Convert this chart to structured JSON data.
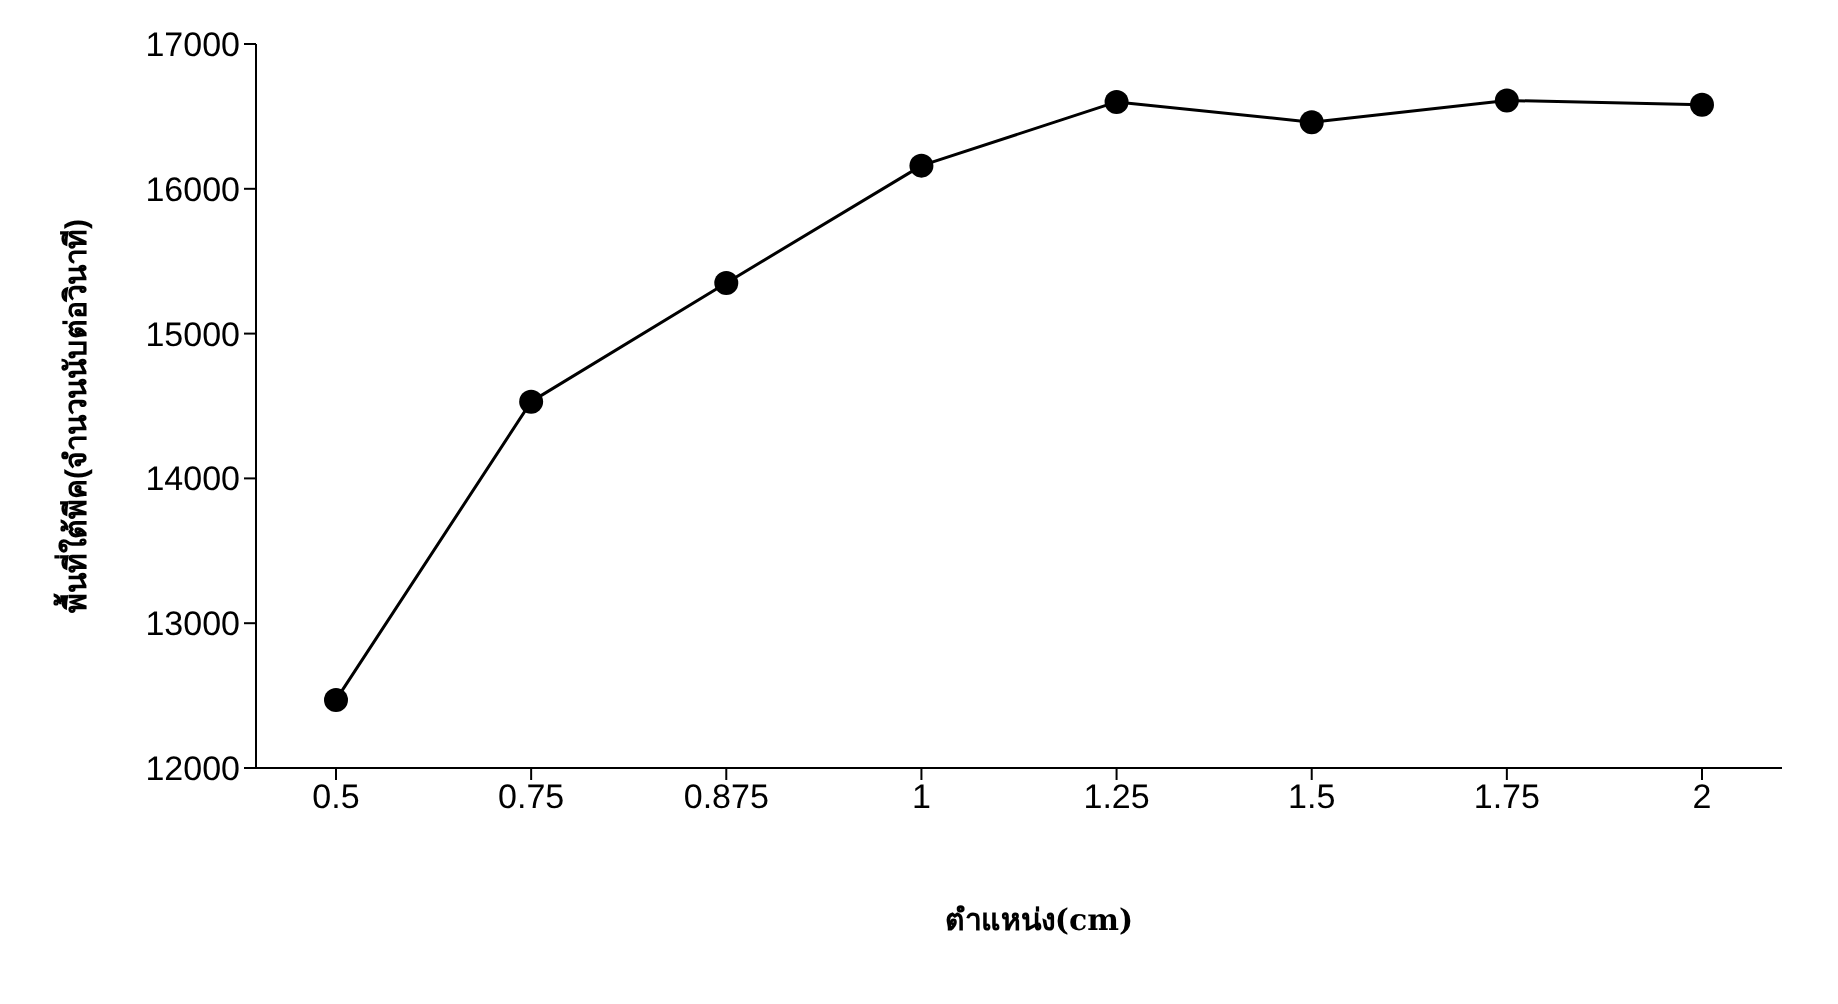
{
  "chart_data": {
    "type": "line",
    "xlabel": "ตำแหน่ง(cm)",
    "ylabel": "พื้นที่ใต้พีค(จำนวนนับต่อวินาที)",
    "categories": [
      "0.5",
      "0.75",
      "0.875",
      "1",
      "1.25",
      "1.5",
      "1.75",
      "2"
    ],
    "series": [
      {
        "color": "#000000",
        "values": [
          12470,
          14530,
          15350,
          16160,
          16600,
          16460,
          16610,
          16580
        ]
      }
    ],
    "ylim": [
      12000,
      17000
    ],
    "yticks": [
      12000,
      13000,
      14000,
      15000,
      16000,
      17000
    ],
    "marker": "circle",
    "line_style": "solid"
  }
}
